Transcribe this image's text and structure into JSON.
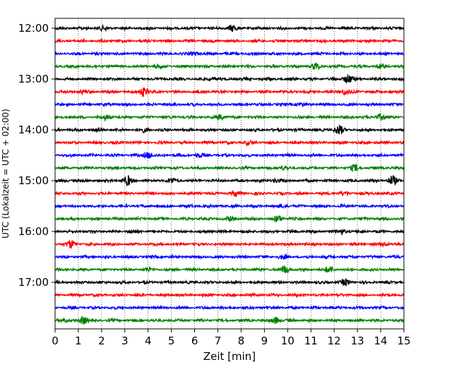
{
  "chart_data": {
    "type": "line",
    "title": "",
    "xlabel": "Zeit  [min]",
    "ylabel": "UTC (Lokalzeit = UTC + 02:00)",
    "xlim": [
      0,
      15
    ],
    "x_ticks": [
      0,
      1,
      2,
      3,
      4,
      5,
      6,
      7,
      8,
      9,
      10,
      11,
      12,
      13,
      14,
      15
    ],
    "y_tick_labels": [
      "12:00",
      "13:00",
      "14:00",
      "15:00",
      "16:00",
      "17:00"
    ],
    "rows_per_hour": 4,
    "trace_colors": [
      "#000000",
      "#ff0000",
      "#0000ff",
      "#008000"
    ],
    "grid": "vertical-dotted",
    "legend": "none",
    "traces": [
      {
        "start": "12:00",
        "color": "#000000",
        "events": [
          {
            "x": 7.6,
            "amp": 4
          },
          {
            "x": 2.1,
            "amp": 2
          }
        ]
      },
      {
        "start": "12:15",
        "color": "#ff0000",
        "events": []
      },
      {
        "start": "12:30",
        "color": "#0000ff",
        "events": [
          {
            "x": 6.0,
            "amp": 2
          }
        ]
      },
      {
        "start": "12:45",
        "color": "#008000",
        "events": [
          {
            "x": 11.2,
            "amp": 4
          },
          {
            "x": 4.4,
            "amp": 2
          },
          {
            "x": 14.0,
            "amp": 2
          }
        ]
      },
      {
        "start": "13:00",
        "color": "#000000",
        "events": [
          {
            "x": 12.6,
            "amp": 6
          },
          {
            "x": 6.8,
            "amp": 2
          }
        ]
      },
      {
        "start": "13:15",
        "color": "#ff0000",
        "events": [
          {
            "x": 3.8,
            "amp": 6
          },
          {
            "x": 12.5,
            "amp": 4
          },
          {
            "x": 1.2,
            "amp": 2
          }
        ]
      },
      {
        "start": "13:30",
        "color": "#0000ff",
        "events": [
          {
            "x": 10.5,
            "amp": 2
          }
        ]
      },
      {
        "start": "13:45",
        "color": "#008000",
        "events": [
          {
            "x": 2.2,
            "amp": 3
          },
          {
            "x": 7.1,
            "amp": 3
          },
          {
            "x": 14.0,
            "amp": 4
          }
        ]
      },
      {
        "start": "14:00",
        "color": "#000000",
        "events": [
          {
            "x": 12.2,
            "amp": 6
          },
          {
            "x": 1.8,
            "amp": 2
          },
          {
            "x": 3.8,
            "amp": 2
          }
        ]
      },
      {
        "start": "14:15",
        "color": "#ff0000",
        "events": [
          {
            "x": 8.3,
            "amp": 2
          }
        ]
      },
      {
        "start": "14:30",
        "color": "#0000ff",
        "events": [
          {
            "x": 4.0,
            "amp": 4
          },
          {
            "x": 6.2,
            "amp": 2
          }
        ]
      },
      {
        "start": "14:45",
        "color": "#008000",
        "events": [
          {
            "x": 12.9,
            "amp": 4
          },
          {
            "x": 9.8,
            "amp": 2
          }
        ]
      },
      {
        "start": "15:00",
        "color": "#000000",
        "events": [
          {
            "x": 3.1,
            "amp": 6
          },
          {
            "x": 5.0,
            "amp": 3
          },
          {
            "x": 14.5,
            "amp": 6
          },
          {
            "x": 9.5,
            "amp": 2
          }
        ]
      },
      {
        "start": "15:15",
        "color": "#ff0000",
        "events": [
          {
            "x": 7.8,
            "amp": 3
          },
          {
            "x": 12.4,
            "amp": 2
          }
        ]
      },
      {
        "start": "15:30",
        "color": "#0000ff",
        "events": [
          {
            "x": 9.8,
            "amp": 2
          }
        ]
      },
      {
        "start": "15:45",
        "color": "#008000",
        "events": [
          {
            "x": 9.6,
            "amp": 4
          },
          {
            "x": 7.5,
            "amp": 2
          }
        ]
      },
      {
        "start": "16:00",
        "color": "#000000",
        "events": [
          {
            "x": 12.3,
            "amp": 3
          },
          {
            "x": 3.3,
            "amp": 2
          }
        ]
      },
      {
        "start": "16:15",
        "color": "#ff0000",
        "events": [
          {
            "x": 0.7,
            "amp": 5
          },
          {
            "x": 14.2,
            "amp": 2
          }
        ]
      },
      {
        "start": "16:30",
        "color": "#0000ff",
        "events": [
          {
            "x": 9.8,
            "amp": 2
          }
        ]
      },
      {
        "start": "16:45",
        "color": "#008000",
        "events": [
          {
            "x": 9.9,
            "amp": 5
          },
          {
            "x": 11.8,
            "amp": 4
          },
          {
            "x": 4.0,
            "amp": 2
          }
        ]
      },
      {
        "start": "17:00",
        "color": "#000000",
        "events": [
          {
            "x": 12.5,
            "amp": 4
          }
        ]
      },
      {
        "start": "17:15",
        "color": "#ff0000",
        "events": []
      },
      {
        "start": "17:30",
        "color": "#0000ff",
        "events": []
      },
      {
        "start": "17:45",
        "color": "#008000",
        "events": [
          {
            "x": 1.2,
            "amp": 5
          },
          {
            "x": 9.5,
            "amp": 4
          },
          {
            "x": 0.3,
            "amp": 2
          }
        ]
      }
    ]
  }
}
